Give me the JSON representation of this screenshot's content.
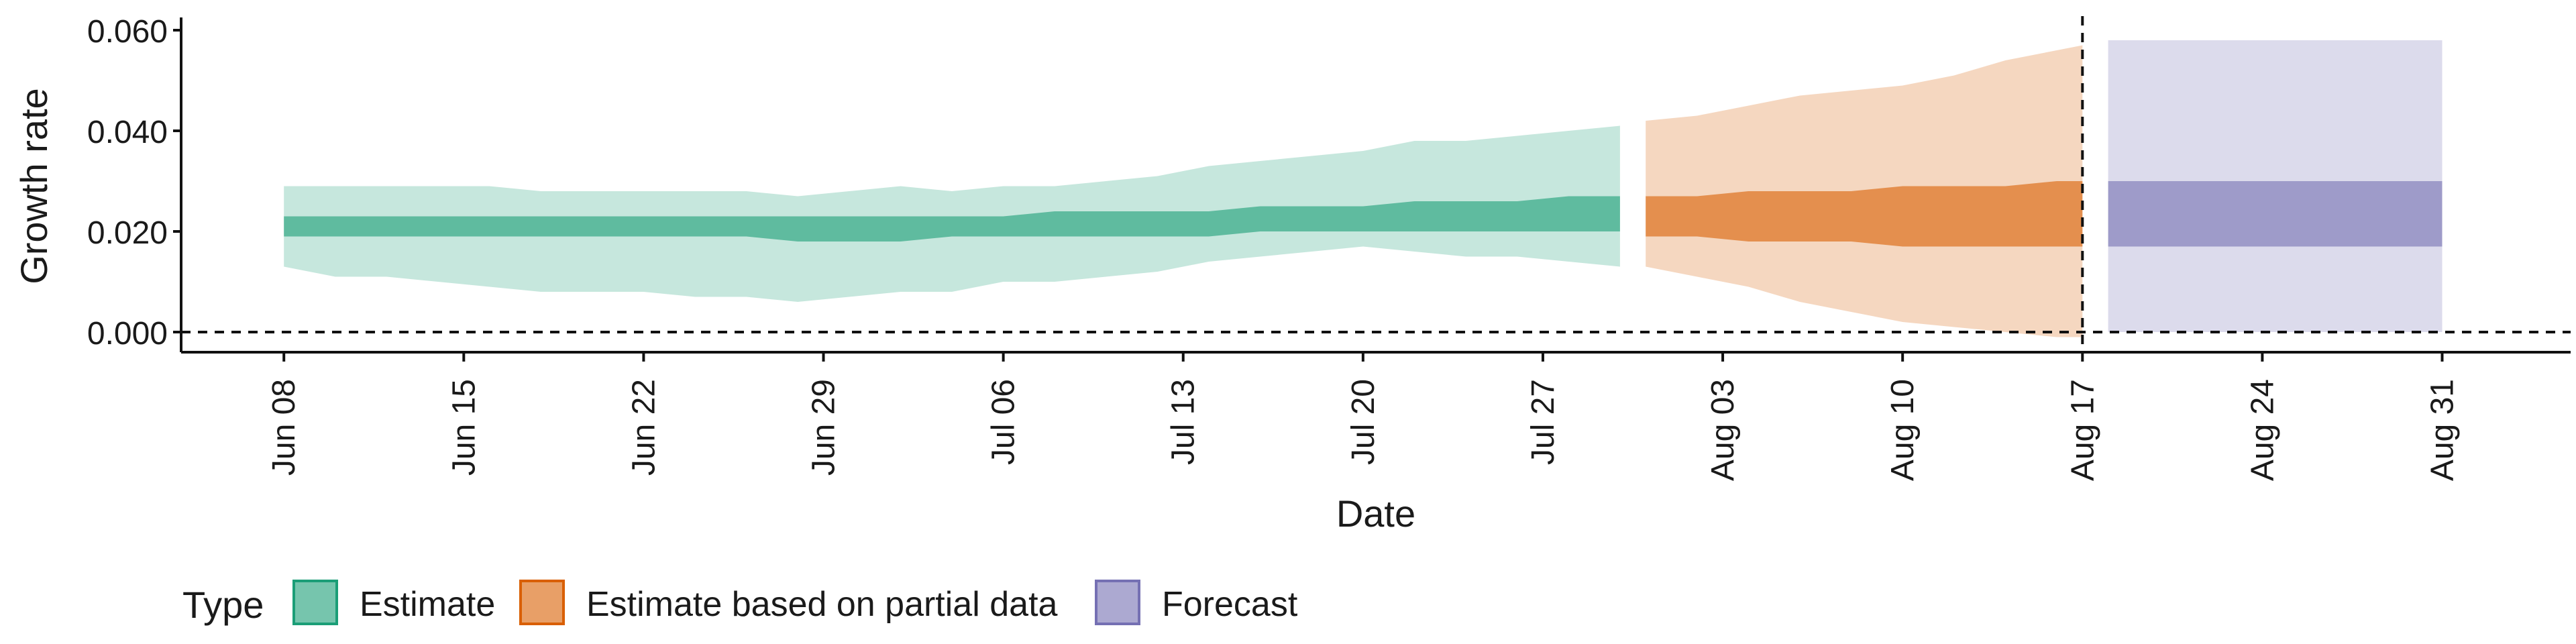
{
  "chart_data": {
    "type": "area",
    "xlabel": "Date",
    "ylabel": "Growth rate",
    "x_tick_labels": [
      "Jun 08",
      "Jun 15",
      "Jun 22",
      "Jun 29",
      "Jul 06",
      "Jul 13",
      "Jul 20",
      "Jul 27",
      "Aug 03",
      "Aug 10",
      "Aug 17",
      "Aug 24",
      "Aug 31"
    ],
    "x_tick_dates": [
      "2020-06-08",
      "2020-06-15",
      "2020-06-22",
      "2020-06-29",
      "2020-07-06",
      "2020-07-13",
      "2020-07-20",
      "2020-07-27",
      "2020-08-03",
      "2020-08-10",
      "2020-08-17",
      "2020-08-24",
      "2020-08-31"
    ],
    "y_ticks": [
      0.0,
      0.02,
      0.04,
      0.06
    ],
    "y_tick_labels": [
      "0.000",
      "0.020",
      "0.040",
      "0.060"
    ],
    "xlim": [
      "2020-06-04",
      "2020-09-05"
    ],
    "ylim": [
      -0.004,
      0.062
    ],
    "reference_lines": [
      {
        "axis": "y",
        "value": 0.0,
        "style": "dashed"
      },
      {
        "axis": "x",
        "value": "2020-08-17",
        "style": "dashed"
      }
    ],
    "legend": {
      "title": "Type",
      "position": "bottom",
      "entries": [
        {
          "label": "Estimate",
          "color": "#1b9e77"
        },
        {
          "label": "Estimate based on partial data",
          "color": "#d95f02"
        },
        {
          "label": "Forecast",
          "color": "#7570b3"
        }
      ]
    },
    "series": [
      {
        "type": "Estimate",
        "fill_color": "#1b9e77",
        "x": [
          "2020-06-08",
          "2020-06-10",
          "2020-06-12",
          "2020-06-14",
          "2020-06-16",
          "2020-06-18",
          "2020-06-20",
          "2020-06-22",
          "2020-06-24",
          "2020-06-26",
          "2020-06-28",
          "2020-06-30",
          "2020-07-02",
          "2020-07-04",
          "2020-07-06",
          "2020-07-08",
          "2020-07-10",
          "2020-07-12",
          "2020-07-14",
          "2020-07-16",
          "2020-07-18",
          "2020-07-20",
          "2020-07-22",
          "2020-07-24",
          "2020-07-26",
          "2020-07-28",
          "2020-07-30"
        ],
        "outer_lower": [
          0.013,
          0.011,
          0.011,
          0.01,
          0.009,
          0.008,
          0.008,
          0.008,
          0.007,
          0.007,
          0.006,
          0.007,
          0.008,
          0.008,
          0.01,
          0.01,
          0.011,
          0.012,
          0.014,
          0.015,
          0.016,
          0.017,
          0.016,
          0.015,
          0.015,
          0.014,
          0.013
        ],
        "outer_upper": [
          0.029,
          0.029,
          0.029,
          0.029,
          0.029,
          0.028,
          0.028,
          0.028,
          0.028,
          0.028,
          0.027,
          0.028,
          0.029,
          0.028,
          0.029,
          0.029,
          0.03,
          0.031,
          0.033,
          0.034,
          0.035,
          0.036,
          0.038,
          0.038,
          0.039,
          0.04,
          0.041
        ],
        "inner_lower": [
          0.019,
          0.019,
          0.019,
          0.019,
          0.019,
          0.019,
          0.019,
          0.019,
          0.019,
          0.019,
          0.018,
          0.018,
          0.018,
          0.019,
          0.019,
          0.019,
          0.019,
          0.019,
          0.019,
          0.02,
          0.02,
          0.02,
          0.02,
          0.02,
          0.02,
          0.02,
          0.02
        ],
        "inner_upper": [
          0.023,
          0.023,
          0.023,
          0.023,
          0.023,
          0.023,
          0.023,
          0.023,
          0.023,
          0.023,
          0.023,
          0.023,
          0.023,
          0.023,
          0.023,
          0.024,
          0.024,
          0.024,
          0.024,
          0.025,
          0.025,
          0.025,
          0.026,
          0.026,
          0.026,
          0.027,
          0.027
        ]
      },
      {
        "type": "Estimate based on partial data",
        "fill_color": "#d95f02",
        "x": [
          "2020-07-31",
          "2020-08-02",
          "2020-08-04",
          "2020-08-06",
          "2020-08-08",
          "2020-08-10",
          "2020-08-12",
          "2020-08-14",
          "2020-08-16",
          "2020-08-17"
        ],
        "outer_lower": [
          0.013,
          0.011,
          0.009,
          0.006,
          0.004,
          0.002,
          0.001,
          0.0,
          -0.001,
          -0.001
        ],
        "outer_upper": [
          0.042,
          0.043,
          0.045,
          0.047,
          0.048,
          0.049,
          0.051,
          0.054,
          0.056,
          0.057
        ],
        "inner_lower": [
          0.019,
          0.019,
          0.018,
          0.018,
          0.018,
          0.017,
          0.017,
          0.017,
          0.017,
          0.017
        ],
        "inner_upper": [
          0.027,
          0.027,
          0.028,
          0.028,
          0.028,
          0.029,
          0.029,
          0.029,
          0.03,
          0.03
        ]
      },
      {
        "type": "Forecast",
        "fill_color": "#7570b3",
        "x": [
          "2020-08-18",
          "2020-08-31"
        ],
        "outer_lower": [
          0.0,
          0.0
        ],
        "outer_upper": [
          0.058,
          0.058
        ],
        "inner_lower": [
          0.017,
          0.017
        ],
        "inner_upper": [
          0.03,
          0.03
        ]
      }
    ]
  }
}
